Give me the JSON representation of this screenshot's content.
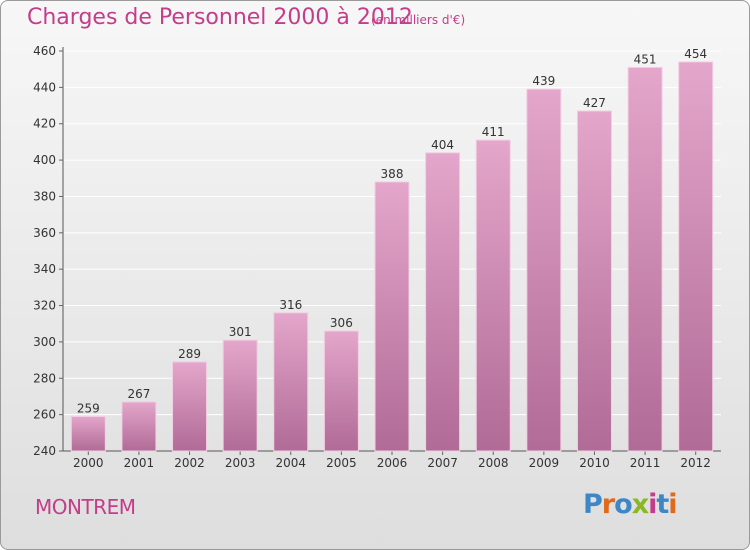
{
  "header": {
    "title": "Charges de Personnel 2000 à 2012",
    "subtitle": "(en milliers d'€)"
  },
  "footer": {
    "city": "MONTREM",
    "brand": "Proxiti"
  },
  "colors": {
    "title": "#c43d8a",
    "bar_top": "#e4a6cb",
    "bar_bottom": "#b06b96",
    "grid": "#ffffff",
    "brand_letters": [
      "#3d87c7",
      "#e06a1a",
      "#3d87c7",
      "#8ab823",
      "#c43d8a",
      "#3d87c7",
      "#e06a1a"
    ]
  },
  "chart_data": {
    "type": "bar",
    "title": "Charges de Personnel 2000 à 2012",
    "subtitle": "(en milliers d'€)",
    "categories": [
      "2000",
      "2001",
      "2002",
      "2003",
      "2004",
      "2005",
      "2006",
      "2007",
      "2008",
      "2009",
      "2010",
      "2011",
      "2012"
    ],
    "values": [
      259,
      267,
      289,
      301,
      316,
      306,
      388,
      404,
      411,
      439,
      427,
      451,
      454
    ],
    "ylim": [
      240,
      460
    ],
    "yticks": [
      240,
      260,
      280,
      300,
      320,
      340,
      360,
      380,
      400,
      420,
      440,
      460
    ],
    "grid": true,
    "xlabel": "",
    "ylabel": ""
  }
}
